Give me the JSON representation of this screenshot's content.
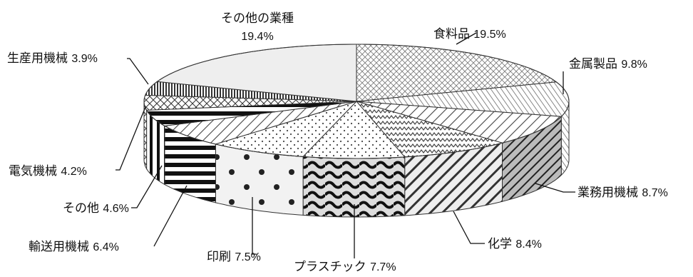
{
  "chart_data": {
    "type": "pie",
    "title": "",
    "slices": [
      {
        "name": "食料品",
        "value": 19.5,
        "label": "19.5%",
        "pattern": "crosshatch"
      },
      {
        "name": "金属製品",
        "value": 9.8,
        "label": "9.8%",
        "pattern": "hatch-fine"
      },
      {
        "name": "業務用機械",
        "value": 8.7,
        "label": "8.7%",
        "pattern": "diag-dark"
      },
      {
        "name": "化学",
        "value": 8.4,
        "label": "8.4%",
        "pattern": "diag-bold"
      },
      {
        "name": "プラスチック",
        "value": 7.7,
        "label": "7.7%",
        "pattern": "wave"
      },
      {
        "name": "印刷",
        "value": 7.5,
        "label": "7.5%",
        "pattern": "dots-big"
      },
      {
        "name": "輸送用機械",
        "value": 6.4,
        "label": "6.4%",
        "pattern": "hstripes"
      },
      {
        "name": "その他",
        "value": 4.6,
        "label": "4.6%",
        "pattern": "vstripes"
      },
      {
        "name": "電気機械",
        "value": 4.2,
        "label": "4.2%",
        "pattern": "diamond"
      },
      {
        "name": "生産用機械",
        "value": 3.9,
        "label": "3.9%",
        "pattern": "vlines-dense"
      },
      {
        "name": "その他の業種",
        "value": 19.4,
        "label": "19.4%",
        "pattern": "plain"
      }
    ],
    "legend": "none",
    "style": "3d-tilted"
  }
}
